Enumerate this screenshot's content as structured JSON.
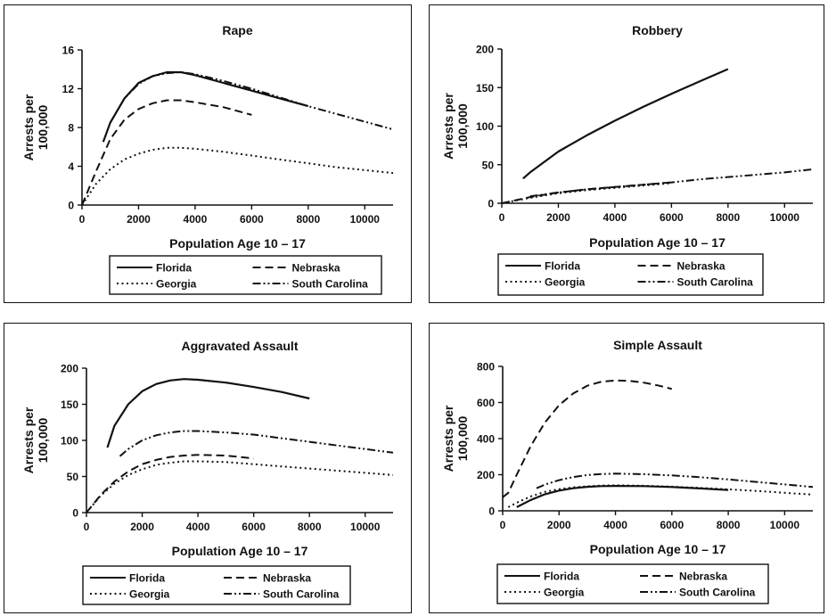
{
  "chart_data": [
    {
      "type": "line",
      "title": "Rape",
      "xlabel": "Population Age 10 – 17",
      "ylabel": "Arrests per 100,000",
      "xlim": [
        0,
        11000
      ],
      "ylim": [
        0,
        16
      ],
      "xticks": [
        0,
        2000,
        4000,
        6000,
        8000,
        10000
      ],
      "yticks": [
        0,
        4,
        8,
        12,
        16
      ],
      "xtick_labels": [
        "0",
        "2000",
        "4000",
        "6000",
        "8000",
        "10000"
      ],
      "ytick_labels": [
        "0",
        "4",
        "8",
        "12",
        "16"
      ],
      "series": [
        {
          "name": "Florida",
          "style": "solid",
          "x": [
            750,
            1000,
            1500,
            2000,
            2500,
            3000,
            3500,
            4000,
            5000,
            6000,
            7000,
            8000
          ],
          "y": [
            6.5,
            8.5,
            11.0,
            12.6,
            13.3,
            13.7,
            13.7,
            13.4,
            12.6,
            11.8,
            11.0,
            10.2
          ]
        },
        {
          "name": "Nebraska",
          "style": "dash",
          "x": [
            0,
            500,
            1000,
            1500,
            2000,
            2500,
            3000,
            3500,
            4000,
            5000,
            6000
          ],
          "y": [
            0,
            3.5,
            6.8,
            8.8,
            9.9,
            10.5,
            10.8,
            10.8,
            10.6,
            10.1,
            9.3
          ]
        },
        {
          "name": "Georgia",
          "style": "dot",
          "x": [
            0,
            500,
            1000,
            1500,
            2000,
            2500,
            3000,
            3500,
            4000,
            5000,
            6000,
            7000,
            8000,
            9000,
            10000,
            11000
          ],
          "y": [
            0,
            2.2,
            3.7,
            4.7,
            5.3,
            5.7,
            5.9,
            5.9,
            5.8,
            5.5,
            5.1,
            4.7,
            4.3,
            3.9,
            3.6,
            3.3
          ]
        },
        {
          "name": "South Carolina",
          "style": "dashdotdot",
          "x": [
            1000,
            1500,
            2000,
            2500,
            3000,
            3500,
            4000,
            5000,
            6000,
            7000,
            8000,
            9000,
            10000,
            11000
          ],
          "y": [
            8.5,
            11.0,
            12.5,
            13.3,
            13.6,
            13.7,
            13.5,
            12.8,
            12.0,
            11.1,
            10.2,
            9.4,
            8.6,
            7.8
          ]
        }
      ]
    },
    {
      "type": "line",
      "title": "Robbery",
      "xlabel": "Population Age 10 – 17",
      "ylabel": "Arrests per 100,000",
      "xlim": [
        0,
        11000
      ],
      "ylim": [
        0,
        200
      ],
      "xticks": [
        0,
        2000,
        4000,
        6000,
        8000,
        10000
      ],
      "yticks": [
        0,
        50,
        100,
        150,
        200
      ],
      "xtick_labels": [
        "0",
        "2000",
        "4000",
        "6000",
        "8000",
        "10000"
      ],
      "ytick_labels": [
        "0",
        "50",
        "100",
        "150",
        "200"
      ],
      "series": [
        {
          "name": "Florida",
          "style": "solid",
          "x": [
            750,
            1000,
            2000,
            3000,
            4000,
            5000,
            6000,
            7000,
            8000
          ],
          "y": [
            32,
            40,
            67,
            88,
            107,
            125,
            142,
            158,
            174
          ]
        },
        {
          "name": "Nebraska",
          "style": "dash",
          "x": [
            0,
            1000,
            2000,
            3000,
            4000,
            5000,
            6000
          ],
          "y": [
            0,
            8,
            14,
            18,
            21,
            24,
            27
          ]
        },
        {
          "name": "Georgia",
          "style": "dot",
          "x": [
            0,
            1000,
            2000,
            3000,
            4000,
            5000,
            6000
          ],
          "y": [
            0,
            7,
            13,
            17,
            20,
            23,
            26
          ]
        },
        {
          "name": "South Carolina",
          "style": "dashdotdot",
          "x": [
            1000,
            2000,
            3000,
            4000,
            5000,
            6000,
            7000,
            8000,
            9000,
            10000,
            11000
          ],
          "y": [
            9,
            14,
            18,
            21,
            24,
            27,
            31,
            34,
            37,
            40,
            44
          ]
        }
      ]
    },
    {
      "type": "line",
      "title": "Aggravated Assault",
      "xlabel": "Population Age 10 – 17",
      "ylabel": "Arrests per 100,000",
      "xlim": [
        0,
        11000
      ],
      "ylim": [
        0,
        200
      ],
      "xticks": [
        0,
        2000,
        4000,
        6000,
        8000,
        10000
      ],
      "yticks": [
        0,
        50,
        100,
        150,
        200
      ],
      "xtick_labels": [
        "0",
        "2000",
        "4000",
        "6000",
        "8000",
        "10000"
      ],
      "ytick_labels": [
        "0",
        "50",
        "100",
        "150",
        "200"
      ],
      "series": [
        {
          "name": "Florida",
          "style": "solid",
          "x": [
            750,
            1000,
            1500,
            2000,
            2500,
            3000,
            3500,
            4000,
            5000,
            6000,
            7000,
            8000
          ],
          "y": [
            90,
            120,
            150,
            168,
            178,
            183,
            185,
            184,
            180,
            174,
            167,
            158
          ]
        },
        {
          "name": "Nebraska",
          "style": "dash",
          "x": [
            0,
            500,
            1000,
            1500,
            2000,
            2500,
            3000,
            3500,
            4000,
            5000,
            6000
          ],
          "y": [
            0,
            24,
            43,
            57,
            67,
            73,
            77,
            79,
            80,
            79,
            75
          ]
        },
        {
          "name": "Georgia",
          "style": "dot",
          "x": [
            0,
            500,
            1000,
            1500,
            2000,
            2500,
            3000,
            3500,
            4000,
            5000,
            6000,
            7000,
            8000,
            9000,
            10000,
            11000
          ],
          "y": [
            0,
            23,
            40,
            52,
            60,
            66,
            69,
            71,
            71,
            70,
            67,
            64,
            61,
            58,
            55,
            52
          ]
        },
        {
          "name": "South Carolina",
          "style": "dashdotdot",
          "x": [
            1200,
            1500,
            2000,
            2500,
            3000,
            3500,
            4000,
            5000,
            6000,
            7000,
            8000,
            9000,
            10000,
            11000
          ],
          "y": [
            78,
            88,
            100,
            107,
            111,
            113,
            113,
            111,
            108,
            103,
            98,
            93,
            88,
            83
          ]
        }
      ]
    },
    {
      "type": "line",
      "title": "Simple Assault",
      "xlabel": "Population Age 10 – 17",
      "ylabel": "Arrests per 100,000",
      "xlim": [
        0,
        11000
      ],
      "ylim": [
        0,
        800
      ],
      "xticks": [
        0,
        2000,
        4000,
        6000,
        8000,
        10000
      ],
      "yticks": [
        0,
        200,
        400,
        600,
        800
      ],
      "xtick_labels": [
        "0",
        "2000",
        "4000",
        "6000",
        "8000",
        "10000"
      ],
      "ytick_labels": [
        "0",
        "200",
        "400",
        "600",
        "800"
      ],
      "series": [
        {
          "name": "Florida",
          "style": "solid",
          "x": [
            500,
            1000,
            1500,
            2000,
            2500,
            3000,
            3500,
            4000,
            5000,
            6000,
            7000,
            8000
          ],
          "y": [
            20,
            60,
            92,
            112,
            125,
            133,
            137,
            138,
            137,
            132,
            124,
            115
          ]
        },
        {
          "name": "Nebraska",
          "style": "dash",
          "x": [
            0,
            200,
            500,
            1000,
            1500,
            2000,
            2500,
            3000,
            3500,
            4000,
            4500,
            5000,
            5500,
            6000
          ],
          "y": [
            75,
            100,
            200,
            360,
            490,
            585,
            650,
            693,
            715,
            722,
            720,
            710,
            695,
            675
          ]
        },
        {
          "name": "Georgia",
          "style": "dot",
          "x": [
            200,
            500,
            1000,
            1500,
            2000,
            2500,
            3000,
            3500,
            4000,
            5000,
            6000,
            7000,
            8000,
            9000,
            10000,
            11000
          ],
          "y": [
            20,
            45,
            80,
            105,
            120,
            130,
            136,
            140,
            141,
            139,
            134,
            127,
            119,
            110,
            100,
            90
          ]
        },
        {
          "name": "South Carolina",
          "style": "dashdotdot",
          "x": [
            1200,
            1500,
            2000,
            2500,
            3000,
            3500,
            4000,
            5000,
            6000,
            7000,
            8000,
            9000,
            10000,
            11000
          ],
          "y": [
            125,
            145,
            170,
            187,
            198,
            204,
            206,
            203,
            196,
            186,
            174,
            160,
            146,
            132
          ]
        }
      ]
    }
  ]
}
